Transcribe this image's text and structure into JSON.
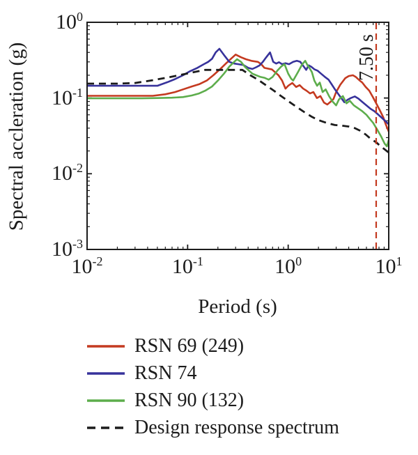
{
  "chart_data": {
    "type": "line",
    "title": "",
    "x_axis": {
      "label": "Period (s)",
      "scale": "log",
      "range": [
        0.01,
        10
      ],
      "tick_base": "10",
      "tick_exponents": [
        "-2",
        "-1",
        "0",
        "1"
      ]
    },
    "y_axis": {
      "label": "Spectral accleration (g)",
      "scale": "log",
      "range": [
        0.001,
        1
      ],
      "tick_base": "10",
      "tick_exponents": [
        "0",
        "-1",
        "-2",
        "-3"
      ]
    },
    "grid": false,
    "legend_position": "below-left",
    "annotation": {
      "text": "7.50 s",
      "period_s": 7.5,
      "line_style": "dashed",
      "color": "#c43a20"
    },
    "series": [
      {
        "name": "RSN 69 (249)",
        "color": "#c43a20",
        "style": "solid",
        "points": [
          [
            0.01,
            0.107
          ],
          [
            0.02,
            0.107
          ],
          [
            0.03,
            0.107
          ],
          [
            0.045,
            0.107
          ],
          [
            0.06,
            0.112
          ],
          [
            0.075,
            0.12
          ],
          [
            0.09,
            0.13
          ],
          [
            0.11,
            0.142
          ],
          [
            0.13,
            0.152
          ],
          [
            0.155,
            0.17
          ],
          [
            0.18,
            0.2
          ],
          [
            0.21,
            0.24
          ],
          [
            0.24,
            0.285
          ],
          [
            0.27,
            0.33
          ],
          [
            0.3,
            0.375
          ],
          [
            0.34,
            0.345
          ],
          [
            0.38,
            0.325
          ],
          [
            0.43,
            0.31
          ],
          [
            0.5,
            0.3
          ],
          [
            0.54,
            0.28
          ],
          [
            0.58,
            0.25
          ],
          [
            0.69,
            0.238
          ],
          [
            0.8,
            0.2
          ],
          [
            0.87,
            0.17
          ],
          [
            0.94,
            0.133
          ],
          [
            1.0,
            0.145
          ],
          [
            1.1,
            0.158
          ],
          [
            1.2,
            0.14
          ],
          [
            1.3,
            0.148
          ],
          [
            1.41,
            0.133
          ],
          [
            1.52,
            0.125
          ],
          [
            1.65,
            0.115
          ],
          [
            1.78,
            0.12
          ],
          [
            1.93,
            0.1
          ],
          [
            2.09,
            0.106
          ],
          [
            2.27,
            0.087
          ],
          [
            2.45,
            0.082
          ],
          [
            2.66,
            0.09
          ],
          [
            2.82,
            0.097
          ],
          [
            3.0,
            0.12
          ],
          [
            3.3,
            0.15
          ],
          [
            3.7,
            0.183
          ],
          [
            4.0,
            0.195
          ],
          [
            4.4,
            0.2
          ],
          [
            4.7,
            0.19
          ],
          [
            5.1,
            0.172
          ],
          [
            5.45,
            0.16
          ],
          [
            5.9,
            0.14
          ],
          [
            6.4,
            0.125
          ],
          [
            6.9,
            0.105
          ],
          [
            7.5,
            0.085
          ],
          [
            8.1,
            0.07
          ],
          [
            8.8,
            0.056
          ],
          [
            9.4,
            0.044
          ],
          [
            10,
            0.036
          ]
        ]
      },
      {
        "name": "RSN 74",
        "color": "#37329b",
        "style": "solid",
        "points": [
          [
            0.01,
            0.145
          ],
          [
            0.02,
            0.145
          ],
          [
            0.035,
            0.145
          ],
          [
            0.05,
            0.145
          ],
          [
            0.063,
            0.162
          ],
          [
            0.075,
            0.178
          ],
          [
            0.09,
            0.2
          ],
          [
            0.105,
            0.225
          ],
          [
            0.125,
            0.25
          ],
          [
            0.145,
            0.28
          ],
          [
            0.16,
            0.3
          ],
          [
            0.175,
            0.33
          ],
          [
            0.19,
            0.4
          ],
          [
            0.207,
            0.447
          ],
          [
            0.23,
            0.37
          ],
          [
            0.26,
            0.3
          ],
          [
            0.29,
            0.285
          ],
          [
            0.32,
            0.28
          ],
          [
            0.36,
            0.272
          ],
          [
            0.4,
            0.25
          ],
          [
            0.44,
            0.242
          ],
          [
            0.48,
            0.255
          ],
          [
            0.52,
            0.27
          ],
          [
            0.56,
            0.3
          ],
          [
            0.6,
            0.34
          ],
          [
            0.66,
            0.4
          ],
          [
            0.71,
            0.3
          ],
          [
            0.76,
            0.285
          ],
          [
            0.81,
            0.297
          ],
          [
            0.87,
            0.28
          ],
          [
            0.94,
            0.288
          ],
          [
            1.02,
            0.28
          ],
          [
            1.12,
            0.3
          ],
          [
            1.22,
            0.31
          ],
          [
            1.32,
            0.3
          ],
          [
            1.43,
            0.26
          ],
          [
            1.51,
            0.235
          ],
          [
            1.6,
            0.27
          ],
          [
            1.7,
            0.258
          ],
          [
            1.82,
            0.24
          ],
          [
            1.96,
            0.23
          ],
          [
            2.12,
            0.21
          ],
          [
            2.32,
            0.19
          ],
          [
            2.52,
            0.175
          ],
          [
            2.72,
            0.15
          ],
          [
            2.92,
            0.13
          ],
          [
            3.12,
            0.115
          ],
          [
            3.37,
            0.1
          ],
          [
            3.62,
            0.088
          ],
          [
            3.9,
            0.095
          ],
          [
            4.2,
            0.1
          ],
          [
            4.6,
            0.105
          ],
          [
            5.0,
            0.098
          ],
          [
            5.45,
            0.089
          ],
          [
            6.0,
            0.08
          ],
          [
            6.6,
            0.072
          ],
          [
            7.2,
            0.067
          ],
          [
            7.8,
            0.061
          ],
          [
            8.5,
            0.055
          ],
          [
            9.2,
            0.05
          ],
          [
            10,
            0.045
          ]
        ]
      },
      {
        "name": "RSN 90 (132)",
        "color": "#5dad4c",
        "style": "solid",
        "points": [
          [
            0.01,
            0.099
          ],
          [
            0.02,
            0.099
          ],
          [
            0.035,
            0.099
          ],
          [
            0.05,
            0.1
          ],
          [
            0.07,
            0.101
          ],
          [
            0.09,
            0.103
          ],
          [
            0.11,
            0.108
          ],
          [
            0.13,
            0.115
          ],
          [
            0.15,
            0.125
          ],
          [
            0.175,
            0.142
          ],
          [
            0.2,
            0.17
          ],
          [
            0.23,
            0.21
          ],
          [
            0.26,
            0.26
          ],
          [
            0.29,
            0.3
          ],
          [
            0.31,
            0.325
          ],
          [
            0.34,
            0.3
          ],
          [
            0.37,
            0.26
          ],
          [
            0.4,
            0.235
          ],
          [
            0.44,
            0.21
          ],
          [
            0.48,
            0.2
          ],
          [
            0.53,
            0.19
          ],
          [
            0.58,
            0.185
          ],
          [
            0.64,
            0.175
          ],
          [
            0.7,
            0.19
          ],
          [
            0.78,
            0.23
          ],
          [
            0.85,
            0.26
          ],
          [
            0.92,
            0.28
          ],
          [
            1.0,
            0.21
          ],
          [
            1.07,
            0.18
          ],
          [
            1.12,
            0.17
          ],
          [
            1.25,
            0.22
          ],
          [
            1.38,
            0.28
          ],
          [
            1.48,
            0.31
          ],
          [
            1.56,
            0.27
          ],
          [
            1.64,
            0.245
          ],
          [
            1.72,
            0.22
          ],
          [
            1.82,
            0.17
          ],
          [
            1.94,
            0.145
          ],
          [
            2.06,
            0.16
          ],
          [
            2.2,
            0.12
          ],
          [
            2.36,
            0.13
          ],
          [
            2.56,
            0.105
          ],
          [
            2.76,
            0.09
          ],
          [
            3.0,
            0.08
          ],
          [
            3.2,
            0.096
          ],
          [
            3.5,
            0.106
          ],
          [
            3.8,
            0.085
          ],
          [
            4.1,
            0.092
          ],
          [
            4.5,
            0.08
          ],
          [
            4.9,
            0.074
          ],
          [
            5.45,
            0.067
          ],
          [
            6.0,
            0.06
          ],
          [
            6.4,
            0.054
          ],
          [
            7.0,
            0.047
          ],
          [
            7.7,
            0.038
          ],
          [
            8.4,
            0.031
          ],
          [
            9.1,
            0.025
          ],
          [
            9.6,
            0.023
          ],
          [
            10,
            0.028
          ]
        ]
      },
      {
        "name": "Design response spectrum",
        "color": "#1c1c1c",
        "style": "dashed",
        "points": [
          [
            0.01,
            0.155
          ],
          [
            0.02,
            0.155
          ],
          [
            0.03,
            0.158
          ],
          [
            0.045,
            0.172
          ],
          [
            0.065,
            0.188
          ],
          [
            0.09,
            0.205
          ],
          [
            0.12,
            0.222
          ],
          [
            0.15,
            0.235
          ],
          [
            0.25,
            0.235
          ],
          [
            0.35,
            0.235
          ],
          [
            0.42,
            0.2
          ],
          [
            0.5,
            0.175
          ],
          [
            0.6,
            0.148
          ],
          [
            0.72,
            0.125
          ],
          [
            0.85,
            0.106
          ],
          [
            1.0,
            0.091
          ],
          [
            1.2,
            0.077
          ],
          [
            1.45,
            0.065
          ],
          [
            1.7,
            0.057
          ],
          [
            2.0,
            0.051
          ],
          [
            2.4,
            0.047
          ],
          [
            2.9,
            0.044
          ],
          [
            3.5,
            0.043
          ],
          [
            4.0,
            0.042
          ],
          [
            4.6,
            0.04
          ],
          [
            5.2,
            0.037
          ],
          [
            5.9,
            0.033
          ],
          [
            6.6,
            0.029
          ],
          [
            7.5,
            0.026
          ],
          [
            8.3,
            0.023
          ],
          [
            9.1,
            0.021
          ],
          [
            10,
            0.019
          ]
        ]
      }
    ]
  }
}
